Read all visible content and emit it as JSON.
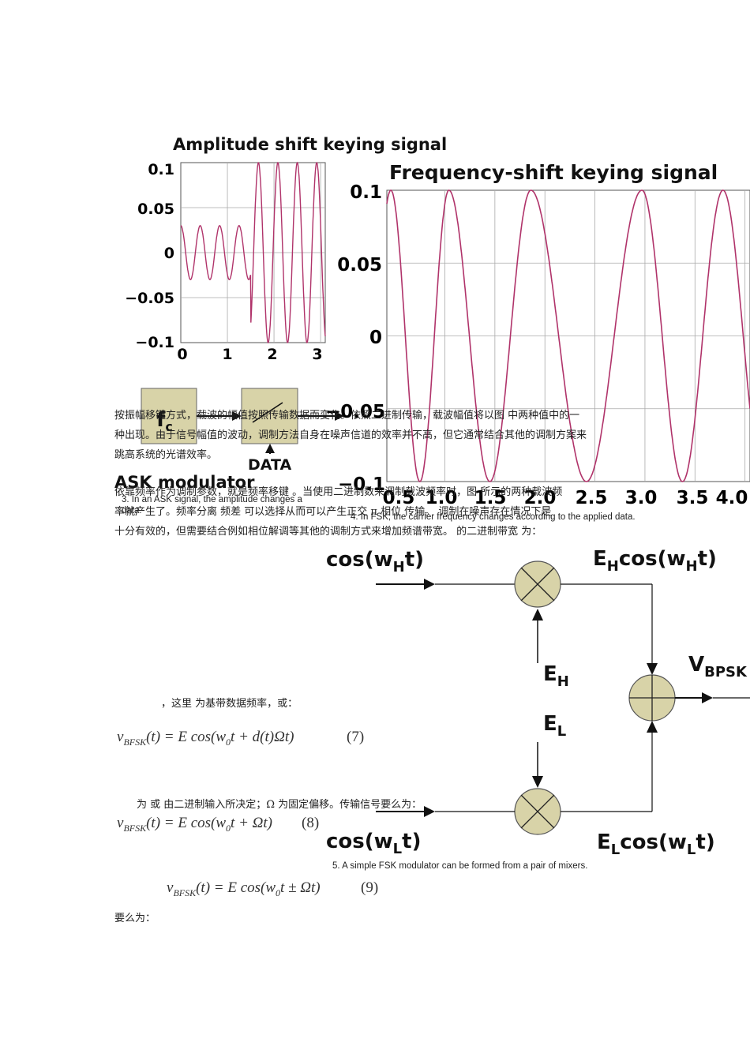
{
  "ask_chart": {
    "title": "Amplitude shift keying signal",
    "y_ticks": [
      "0.1",
      "0.05",
      "0",
      "−0.05",
      "−0.1"
    ],
    "x_ticks": [
      "0",
      "1",
      "2",
      "3"
    ]
  },
  "fsk_chart": {
    "title": "Frequency-shift keying signal",
    "y_ticks": [
      "0.1",
      "0.05",
      "0",
      "−0.05",
      "−0.1"
    ],
    "x_ticks": [
      "0.5",
      "1.0",
      "1.5",
      "2.0",
      "2.5",
      "3.0",
      "3.5",
      "4.0"
    ]
  },
  "chart_data": [
    {
      "type": "line",
      "title": "Amplitude shift keying signal",
      "xlim": [
        0,
        3.1
      ],
      "ylim": [
        -0.1,
        0.1
      ],
      "series": [
        {
          "amplitude_low": 0.03,
          "amplitude_high": 0.1,
          "switch_x": 1.5,
          "cycles_per_unit": 2.4
        }
      ]
    },
    {
      "type": "line",
      "title": "Frequency-shift keying signal",
      "xlim": [
        0.42,
        4.05
      ],
      "ylim": [
        -0.1,
        0.1
      ],
      "series": [
        {
          "amplitude": 0.1,
          "crests_x": [
            0.46,
            1.04,
            1.86,
            2.97,
            3.78
          ]
        }
      ]
    }
  ],
  "ask_modulator": {
    "carrier_label": "f",
    "carrier_sub": "c",
    "data_label": "DATA",
    "title": "ASK modulator"
  },
  "fsk_diagram": {
    "input_h": "cos(w",
    "input_h_sub": "H",
    "input_h_end": "t)",
    "output_h": "E",
    "output_h_sub": "H",
    "output_h_mid": "cos(w",
    "output_h_sub2": "H",
    "output_h_end": "t)",
    "eh": "E",
    "eh_sub": "H",
    "el": "E",
    "el_sub": "L",
    "vout": "V",
    "vout_sub": "BPSK",
    "input_l": "cos(w",
    "input_l_sub": "L",
    "input_l_end": "t)",
    "output_l": "E",
    "output_l_sub": "L",
    "output_l_mid": "cos(w",
    "output_l_sub2": "L",
    "output_l_end": "t)"
  },
  "text": {
    "p1_line1": "按振幅移键方式，载波的幅值按照传输数据而变化。依照二进制传输，载波幅值将以图    中两种值中的一",
    "p1_line2": "种出现。由于信号幅值的波动，调制方法自身在噪声信道的效率并不高，但它通常结合其他的调制方案来",
    "p1_line3": "跳高系统的光谱效率。",
    "p2_line1": "依靠频率作为调制参数，就是频率移键          。当使用二进制数来调制载波频率时，图    所示的两种载波频",
    "caption3": "3. In an ASK signal, the amplitude changes a",
    "caption3b": "data.",
    "p2_line2": "率就产生了。频率分离  频差  可以选择从而可以产生正交  π      相位  传输。      调制在噪声存在情况下是",
    "caption4": "4. In FSK, the carrier frequency changes according to the applied data.",
    "p2_line3": "十分有效的，但需要结合例如相位解调等其他的调制方式来增加频谱带宽。        的二进制带宽          为：",
    "p3": "，这里    为基带数据频率，或：",
    "eq7": "v",
    "eq7_sub": "BFSK",
    "eq7_body": "(t) = E cos(w",
    "eq7_sub0": "0",
    "eq7_end": "t + d(t)Ωt)",
    "eq7_num": "(7)",
    "p4": "为    或    由二进制输入所决定；Ω 为固定偏移。传输信号要么为：",
    "eq8_sub": "BFSK",
    "eq8_body": "(t) = E cos(w",
    "eq8_end": "t + Ωt)",
    "eq8_num": "(8)",
    "caption5": "5. A simple FSK modulator can be formed from a pair of mixers.",
    "eq9_sub": "BFSK",
    "eq9_body": "(t) = E cos(w",
    "eq9_end": "t ± Ωt)",
    "eq9_num": "(9)",
    "p5": "要么为："
  }
}
